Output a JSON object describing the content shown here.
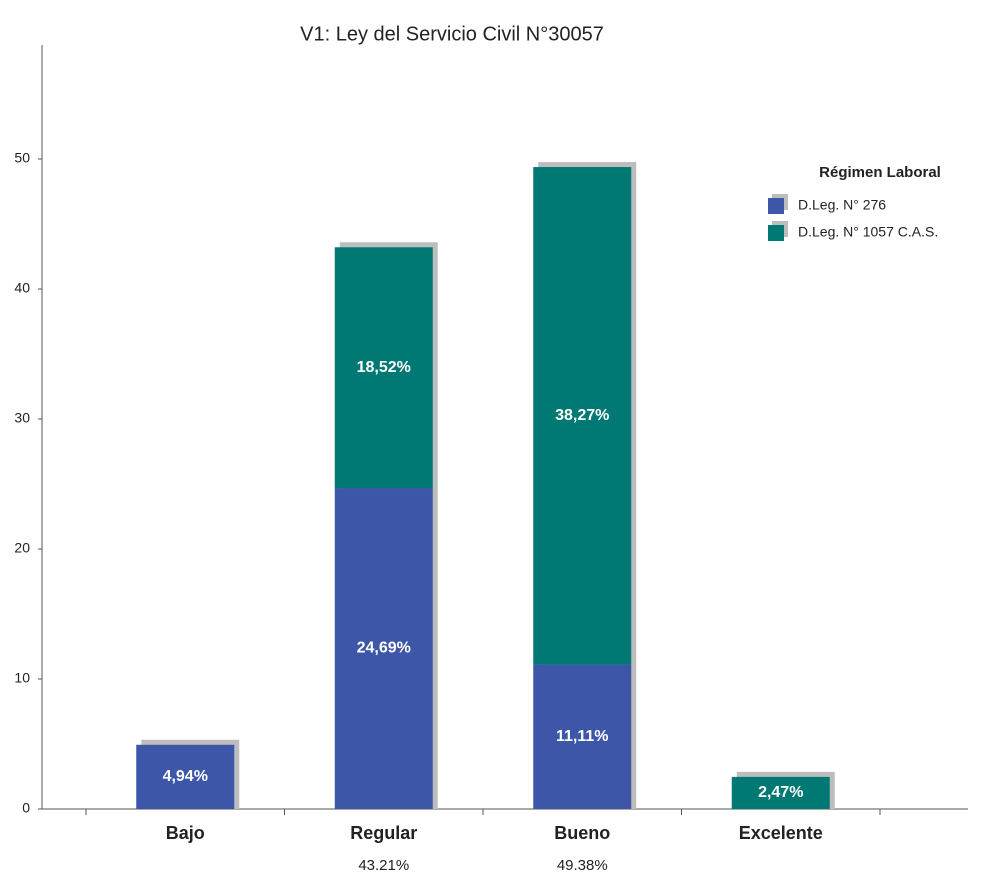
{
  "chart_data": {
    "type": "stacked_bar",
    "title": "V1: Ley del Servicio Civil N°30057",
    "categories": [
      "Bajo",
      "Regular",
      "Bueno",
      "Excelente"
    ],
    "series": [
      {
        "name": "D.Leg. N° 276",
        "color": "#3d56a8",
        "values": [
          4.94,
          24.69,
          11.11,
          null
        ],
        "value_labels": [
          "4,94%",
          "24,69%",
          "11,11%",
          null
        ]
      },
      {
        "name": "D.Leg. N° 1057 C.A.S.",
        "color": "#007873",
        "values": [
          null,
          18.52,
          38.27,
          2.47
        ],
        "value_labels": [
          null,
          "18,52%",
          "38,27%",
          "2,47%"
        ]
      }
    ],
    "totals": [
      null,
      43.21,
      49.38,
      null
    ],
    "total_labels": [
      null,
      "43.21%",
      "49.38%",
      null
    ],
    "legend_title": "Régimen Laboral",
    "legend": "upper right",
    "ylim": [
      0,
      59
    ],
    "yticks": [
      0,
      10,
      20,
      30,
      40,
      50
    ]
  }
}
